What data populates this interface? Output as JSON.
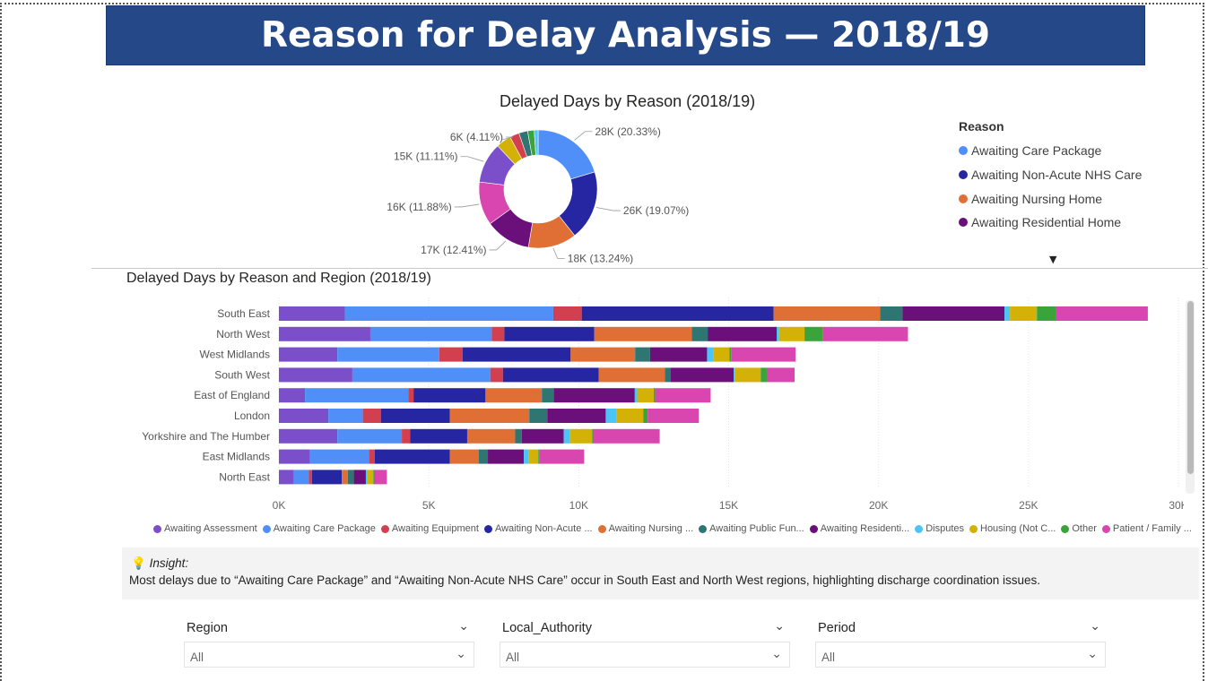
{
  "page": {
    "title": "Reason for Delay Analysis — 2018/19"
  },
  "donut": {
    "title": "Delayed Days by Reason (2018/19)",
    "legend_title": "Reason",
    "legend_items": [
      {
        "label": "Awaiting Care Package",
        "color": "#4f8ff7"
      },
      {
        "label": "Awaiting Non-Acute NHS Care",
        "color": "#2626a3"
      },
      {
        "label": "Awaiting Nursing Home",
        "color": "#e06f35"
      },
      {
        "label": "Awaiting Residential Home",
        "color": "#6b0f7a"
      }
    ],
    "more_icon": "triangle-down-icon"
  },
  "bar_chart_title": "Delayed Days by Reason and Region (2018/19)",
  "chart_data": [
    {
      "type": "pie",
      "title": "Delayed Days by Reason (2018/19)",
      "labels_shown": [
        "28K (20.33%)",
        "26K (19.07%)",
        "18K (13.24%)",
        "17K (12.41%)",
        "16K (11.88%)",
        "15K (11.11%)",
        "6K (4.11%)"
      ],
      "slices": [
        {
          "name": "Awaiting Care Package",
          "percent": 20.33,
          "color": "#4f8ff7"
        },
        {
          "name": "Awaiting Non-Acute NHS Care",
          "percent": 19.07,
          "color": "#2626a3"
        },
        {
          "name": "Awaiting Nursing Home",
          "percent": 13.24,
          "color": "#e06f35"
        },
        {
          "name": "Awaiting Residential Home",
          "percent": 12.41,
          "color": "#6b0f7a"
        },
        {
          "name": "Patient / Family Choice",
          "percent": 11.88,
          "color": "#d946b0"
        },
        {
          "name": "Awaiting Assessment",
          "percent": 11.11,
          "color": "#7b4fc9"
        },
        {
          "name": "Housing (Not Covered by NHS and Community Care Act)",
          "percent": 4.11,
          "color": "#d4b106"
        },
        {
          "name": "Awaiting Equipment",
          "percent": 2.6,
          "color": "#d2404f"
        },
        {
          "name": "Awaiting Public Funding",
          "percent": 2.4,
          "color": "#2f7572"
        },
        {
          "name": "Other",
          "percent": 1.8,
          "color": "#3aa43a"
        },
        {
          "name": "Disputes",
          "percent": 1.05,
          "color": "#4cc4f5"
        }
      ]
    },
    {
      "type": "bar",
      "orientation": "horizontal",
      "stacked": true,
      "title": "Delayed Days by Reason and Region (2018/19)",
      "categories": [
        "South East",
        "North West",
        "West Midlands",
        "South West",
        "East of England",
        "London",
        "Yorkshire and The Humber",
        "East Midlands",
        "North East"
      ],
      "x_ticks": [
        "0K",
        "5K",
        "10K",
        "15K",
        "20K",
        "25K",
        "30K"
      ],
      "xlim": [
        0,
        30000
      ],
      "grid": true,
      "series": [
        {
          "name": "Awaiting Assessment",
          "color": "#7b4fc9",
          "values": [
            2200,
            3050,
            1950,
            2450,
            870,
            1650,
            1950,
            1030,
            500
          ]
        },
        {
          "name": "Awaiting Care Package",
          "color": "#4f8ff7",
          "values": [
            6950,
            4050,
            3400,
            4600,
            3450,
            1150,
            2150,
            1970,
            500
          ]
        },
        {
          "name": "Awaiting Equipment",
          "color": "#d2404f",
          "values": [
            950,
            420,
            780,
            420,
            170,
            600,
            280,
            200,
            100
          ]
        },
        {
          "name": "Awaiting Non-Acute NHS Care",
          "color": "#2626a3",
          "values": [
            6400,
            3000,
            3600,
            3200,
            2400,
            2300,
            1900,
            2500,
            1000
          ]
        },
        {
          "name": "Awaiting Nursing Home",
          "color": "#e06f35",
          "values": [
            3550,
            3250,
            2150,
            2200,
            1880,
            2650,
            1600,
            970,
            200
          ]
        },
        {
          "name": "Awaiting Public Funding",
          "color": "#2f7572",
          "values": [
            750,
            530,
            500,
            200,
            400,
            600,
            220,
            300,
            200
          ]
        },
        {
          "name": "Awaiting Residential Home",
          "color": "#6b0f7a",
          "values": [
            3400,
            2300,
            1900,
            2100,
            2700,
            1950,
            1400,
            1200,
            400
          ]
        },
        {
          "name": "Disputes",
          "color": "#4cc4f5",
          "values": [
            180,
            80,
            200,
            50,
            80,
            350,
            200,
            150,
            50
          ]
        },
        {
          "name": "Housing (Not Covered by NHS and Community Care Act)",
          "color": "#d4b106",
          "values": [
            900,
            850,
            550,
            850,
            550,
            900,
            750,
            330,
            200
          ]
        },
        {
          "name": "Other",
          "color": "#3aa43a",
          "values": [
            650,
            600,
            50,
            200,
            50,
            150,
            50,
            50,
            50
          ]
        },
        {
          "name": "Patient / Family Choice",
          "color": "#d946b0",
          "values": [
            3050,
            2850,
            2150,
            930,
            1850,
            1700,
            2200,
            1480,
            400
          ]
        }
      ],
      "legend": [
        "Awaiting Assessment",
        "Awaiting Care Package",
        "Awaiting Equipment",
        "Awaiting Non-Acute ...",
        "Awaiting Nursing ...",
        "Awaiting Public Fun...",
        "Awaiting Residenti...",
        "Disputes",
        "Housing (Not C...",
        "Other",
        "Patient / Family ..."
      ],
      "legend_position": "bottom"
    }
  ],
  "insight": {
    "icon": "lightbulb-icon",
    "label": "Insight:",
    "text": "Most delays due to “Awaiting Care Package” and “Awaiting Non-Acute NHS Care” occur in South East and North West regions, highlighting discharge coordination issues."
  },
  "slicers": [
    {
      "label": "Region",
      "value": "All"
    },
    {
      "label": "Local_Authority",
      "value": "All"
    },
    {
      "label": "Period",
      "value": "All"
    }
  ]
}
